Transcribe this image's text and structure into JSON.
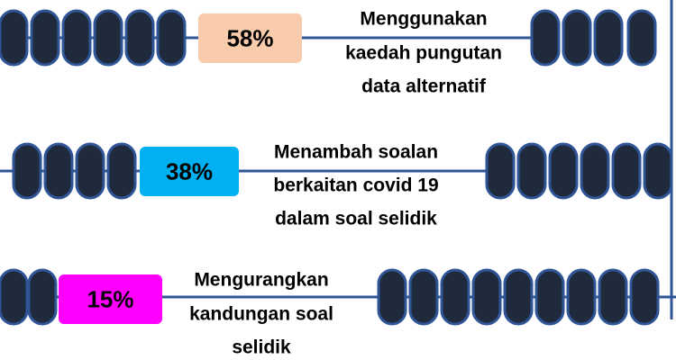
{
  "items": [
    {
      "value": "58%",
      "color": "#f8cbad",
      "label": [
        "Menggunakan",
        "kaedah pungutan",
        "data alternatif"
      ]
    },
    {
      "value": "38%",
      "color": "#00b0f0",
      "label": [
        "Menambah soalan",
        "berkaitan covid 19",
        "dalam soal selidik"
      ]
    },
    {
      "value": "15%",
      "color": "#ff00ff",
      "label": [
        "Mengurangkan",
        "kandungan soal",
        "selidik"
      ]
    }
  ]
}
